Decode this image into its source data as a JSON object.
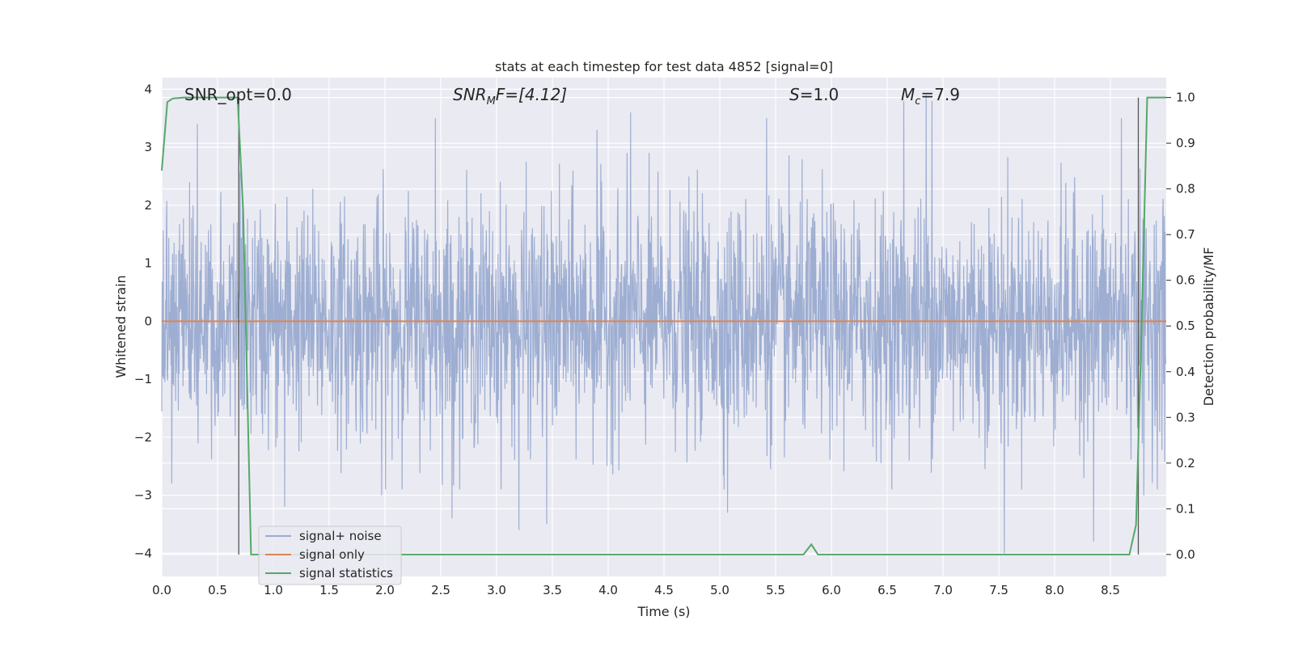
{
  "chart_data": {
    "type": "line",
    "title": "stats at each timestep for test data 4852 [signal=0]",
    "xlabel": "Time (s)",
    "ylabel": "Whitened strain",
    "y2label": "Detection probability/MF",
    "xlim": [
      0.0,
      9.0
    ],
    "ylim": [
      -4.4,
      4.2
    ],
    "y2lim": [
      -0.048,
      1.0435
    ],
    "xticks": [
      "0.0",
      "0.5",
      "1.0",
      "1.5",
      "2.0",
      "2.5",
      "3.0",
      "3.5",
      "4.0",
      "4.5",
      "5.0",
      "5.5",
      "6.0",
      "6.5",
      "7.0",
      "7.5",
      "8.0",
      "8.5"
    ],
    "yticks": [
      "4",
      "3",
      "2",
      "1",
      "0",
      "−1",
      "−2",
      "−3",
      "−4"
    ],
    "y2ticks": [
      "1.0",
      "0.9",
      "0.8",
      "0.7",
      "0.6",
      "0.5",
      "0.4",
      "0.3",
      "0.2",
      "0.1",
      "0.0"
    ],
    "grid": true,
    "legend_position": "lower-left",
    "annotations": {
      "snr_opt": "SNR_opt=0.0",
      "snr_mf_main": "SNR",
      "snr_mf_sub": "M",
      "snr_mf_rest": "F=[4.12]",
      "s_main": "S",
      "s_rest": "=1.0",
      "mc_main": "M",
      "mc_sub": "c",
      "mc_rest": "=7.9"
    },
    "series": [
      {
        "name": "signal+ noise",
        "color": "#9aabd0",
        "description_of_values": "whitened strain noise, roughly gaussian between about -2 and 2 with spikes",
        "extremes": [
          [
            0.09,
            -2.8
          ],
          [
            0.25,
            2.4
          ],
          [
            0.32,
            3.4
          ],
          [
            1.1,
            -3.2
          ],
          [
            1.97,
            -3.0
          ],
          [
            2.45,
            3.5
          ],
          [
            2.6,
            -3.4
          ],
          [
            3.2,
            -3.6
          ],
          [
            3.45,
            -3.5
          ],
          [
            3.9,
            3.3
          ],
          [
            4.2,
            3.6
          ],
          [
            5.07,
            -3.3
          ],
          [
            5.42,
            3.5
          ],
          [
            6.65,
            3.8
          ],
          [
            6.85,
            3.9
          ],
          [
            6.9,
            3.8
          ],
          [
            7.55,
            -4.0
          ],
          [
            8.35,
            -3.8
          ],
          [
            8.6,
            3.5
          ],
          [
            8.8,
            -3.0
          ]
        ]
      },
      {
        "name": "signal only",
        "color": "#dd8452",
        "x": [
          0.0,
          9.0
        ],
        "y": [
          0.0,
          0.0
        ]
      },
      {
        "name": "signal statistics",
        "color": "#55a868",
        "axis": "right",
        "x": [
          0.0,
          0.05,
          0.1,
          0.15,
          0.2,
          0.3,
          0.4,
          0.5,
          0.6,
          0.68,
          0.73,
          0.8,
          0.9,
          1.5,
          2.5,
          3.5,
          4.5,
          5.5,
          5.75,
          5.82,
          5.88,
          6.0,
          7.0,
          8.0,
          8.5,
          8.67,
          8.73,
          8.78,
          8.83,
          8.9,
          9.0
        ],
        "y": [
          0.84,
          0.99,
          0.998,
          0.999,
          1.0,
          1.0,
          1.0,
          1.0,
          1.0,
          1.0,
          0.75,
          0.0,
          0.0,
          0.0,
          0.0,
          0.0,
          0.0,
          0.0,
          0.0,
          0.022,
          0.0,
          0.0,
          0.0,
          0.0,
          0.0,
          0.0,
          0.065,
          0.5,
          1.0,
          1.0,
          1.0
        ]
      }
    ],
    "vertical_lines": [
      0.69,
      8.75
    ]
  }
}
